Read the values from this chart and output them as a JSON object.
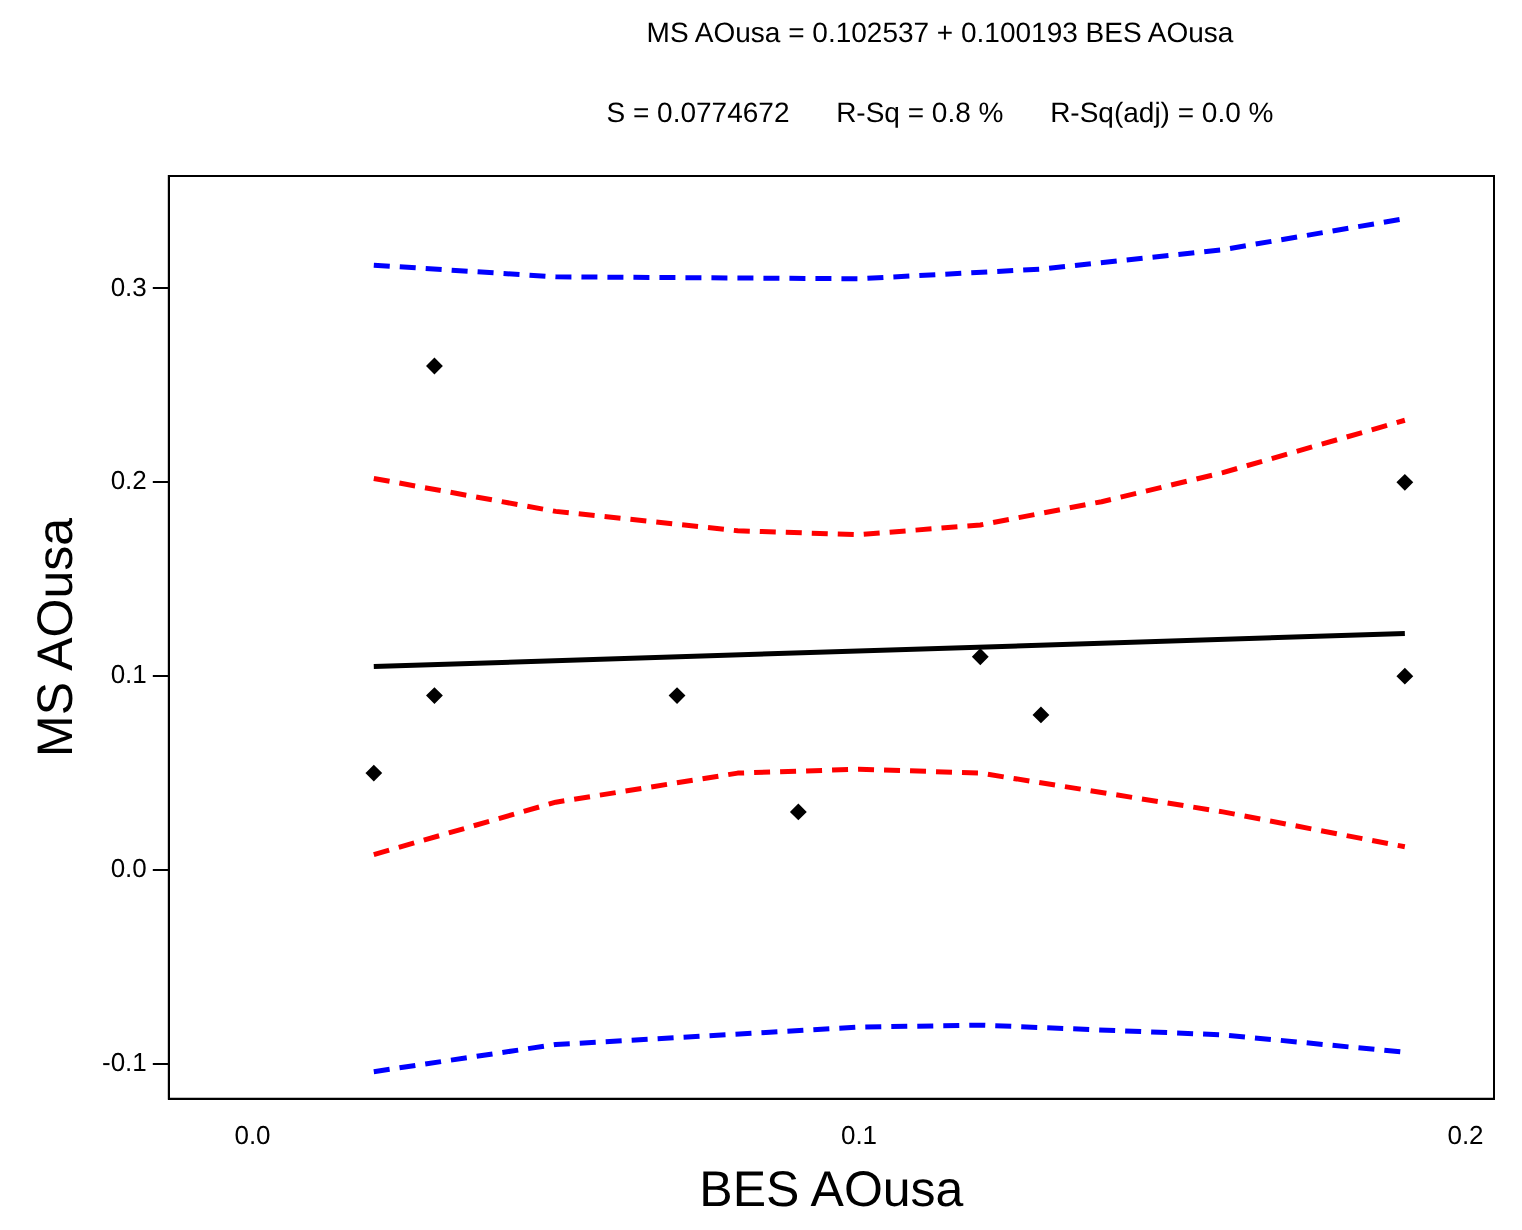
{
  "chart_data": {
    "type": "scatter",
    "title": "MS AOusa = 0.102537 + 0.100193 BES AOusa",
    "subtitle": "S = 0.0774672      R-Sq = 0.8 %      R-Sq(adj) = 0.0 %",
    "xlabel": "BES AOusa",
    "ylabel": "MS AOusa",
    "xlim": [
      -0.0138,
      0.2047
    ],
    "ylim": [
      -0.118,
      0.358
    ],
    "xticks": [
      {
        "value": 0,
        "label": "0.0"
      },
      {
        "value": 0.1,
        "label": "0.1"
      },
      {
        "value": 0.2,
        "label": "0.2"
      }
    ],
    "yticks": [
      {
        "value": -0.1,
        "label": "-0.1"
      },
      {
        "value": 0,
        "label": "0.0"
      },
      {
        "value": 0.1,
        "label": "0.1"
      },
      {
        "value": 0.2,
        "label": "0.2"
      },
      {
        "value": 0.3,
        "label": "0.3"
      }
    ],
    "grid": false,
    "legend": false,
    "series": [
      {
        "color": "#000000",
        "marker": "diamond",
        "x": [
          0.02,
          0.03,
          0.03,
          0.07,
          0.09,
          0.12,
          0.13,
          0.19,
          0.19
        ],
        "values": [
          0.05,
          0.26,
          0.09,
          0.09,
          0.03,
          0.11,
          0.08,
          0.2,
          0.1
        ]
      },
      {
        "type": "line",
        "color": "#000000",
        "line_style": "solid",
        "marker": "none",
        "x": [
          0.02,
          0.19
        ],
        "values": [
          0.105,
          0.122
        ]
      },
      {
        "type": "line",
        "color": "#ff0000",
        "line_style": "dashed",
        "marker": "none",
        "x": [
          0.02,
          0.05,
          0.08,
          0.1,
          0.12,
          0.14,
          0.16,
          0.19
        ],
        "values": [
          0.202,
          0.185,
          0.175,
          0.173,
          0.178,
          0.19,
          0.205,
          0.232
        ]
      },
      {
        "type": "line",
        "color": "#ff0000",
        "line_style": "dashed",
        "marker": "none",
        "x": [
          0.02,
          0.05,
          0.08,
          0.1,
          0.12,
          0.14,
          0.16,
          0.19
        ],
        "values": [
          0.008,
          0.035,
          0.05,
          0.052,
          0.05,
          0.04,
          0.03,
          0.012
        ]
      },
      {
        "type": "line",
        "color": "#0000ff",
        "line_style": "dashed",
        "marker": "none",
        "x": [
          0.02,
          0.05,
          0.1,
          0.13,
          0.16,
          0.19
        ],
        "values": [
          0.312,
          0.306,
          0.305,
          0.31,
          0.32,
          0.336
        ]
      },
      {
        "type": "line",
        "color": "#0000ff",
        "line_style": "dashed",
        "marker": "none",
        "x": [
          0.02,
          0.05,
          0.1,
          0.12,
          0.16,
          0.19
        ],
        "values": [
          -0.104,
          -0.09,
          -0.081,
          -0.08,
          -0.085,
          -0.094
        ]
      }
    ]
  }
}
